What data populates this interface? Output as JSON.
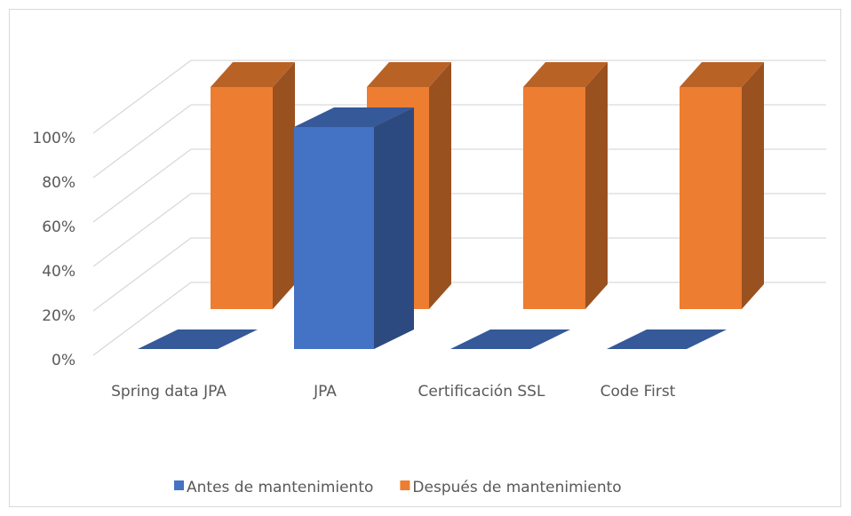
{
  "chart_data": {
    "type": "bar3d",
    "categories": [
      "Spring data JPA",
      "JPA",
      "Certificación SSL",
      "Code First"
    ],
    "series": [
      {
        "name": "Antes de mantenimiento",
        "color": "#4472c4",
        "values": [
          0,
          100,
          0,
          0
        ]
      },
      {
        "name": "Después de mantenimiento",
        "color": "#ed7d31",
        "values": [
          100,
          100,
          100,
          100
        ]
      }
    ],
    "ylim": [
      0,
      100
    ],
    "yticks": [
      {
        "value": 0,
        "label": "0%"
      },
      {
        "value": 20,
        "label": "20%"
      },
      {
        "value": 40,
        "label": "40%"
      },
      {
        "value": 60,
        "label": "60%"
      },
      {
        "value": 80,
        "label": "80%"
      },
      {
        "value": 100,
        "label": "100%"
      }
    ],
    "grid": true,
    "legend": "bottom"
  }
}
